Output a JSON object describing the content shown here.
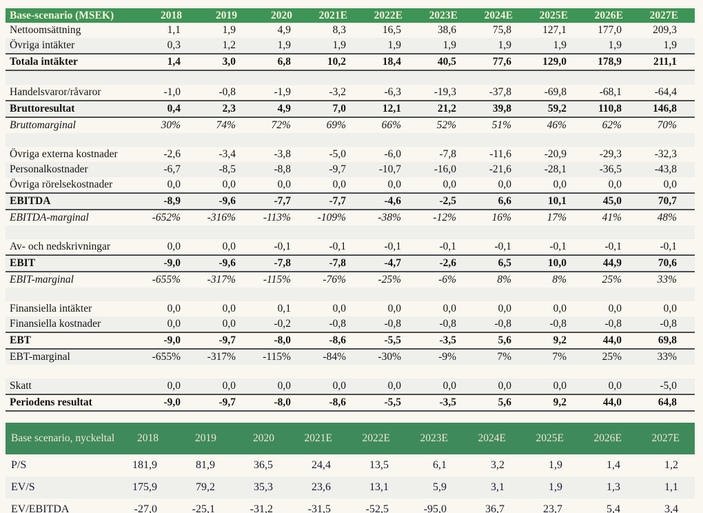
{
  "colors": {
    "page_background": "#f9f7ef",
    "table1_header_green": "#3e9456",
    "table2_header_green": "#3f8a5a",
    "header_text": "#f5f1dc",
    "row_stripe": "#efefec",
    "total_row_border": "#4c4d4f",
    "body_text": "#141414"
  },
  "table1": {
    "header": {
      "label": "Base-scenario (MSEK)",
      "years": [
        "2018",
        "2019",
        "2020",
        "2021E",
        "2022E",
        "2023E",
        "2024E",
        "2025E",
        "2026E",
        "2027E"
      ]
    },
    "rows": [
      {
        "label": "Nettoomsättning",
        "type": "normal",
        "values": [
          "1,1",
          "1,9",
          "4,9",
          "8,3",
          "16,5",
          "38,6",
          "75,8",
          "127,1",
          "177,0",
          "209,3"
        ]
      },
      {
        "label": "Övriga intäkter",
        "type": "normal",
        "values": [
          "0,3",
          "1,2",
          "1,9",
          "1,9",
          "1,9",
          "1,9",
          "1,9",
          "1,9",
          "1,9",
          "1,9"
        ]
      },
      {
        "label": "Totala intäkter",
        "type": "total",
        "values": [
          "1,4",
          "3,0",
          "6,8",
          "10,2",
          "18,4",
          "40,5",
          "77,6",
          "129,0",
          "178,9",
          "211,1"
        ]
      },
      {
        "label": "",
        "type": "blank",
        "values": [
          "",
          "",
          "",
          "",
          "",
          "",
          "",
          "",
          "",
          ""
        ]
      },
      {
        "label": "Handelsvaror/råvaror",
        "type": "normal",
        "values": [
          "-1,0",
          "-0,8",
          "-1,9",
          "-3,2",
          "-6,3",
          "-19,3",
          "-37,8",
          "-69,8",
          "-68,1",
          "-64,4"
        ]
      },
      {
        "label": "Bruttoresultat",
        "type": "total",
        "values": [
          "0,4",
          "2,3",
          "4,9",
          "7,0",
          "12,1",
          "21,2",
          "39,8",
          "59,2",
          "110,8",
          "146,8"
        ]
      },
      {
        "label": "Bruttomarginal",
        "type": "italic",
        "values": [
          "30%",
          "74%",
          "72%",
          "69%",
          "66%",
          "52%",
          "51%",
          "46%",
          "62%",
          "70%"
        ]
      },
      {
        "label": "",
        "type": "blank",
        "values": [
          "",
          "",
          "",
          "",
          "",
          "",
          "",
          "",
          "",
          ""
        ]
      },
      {
        "label": "Övriga externa kostnader",
        "type": "normal",
        "values": [
          "-2,6",
          "-3,4",
          "-3,8",
          "-5,0",
          "-6,0",
          "-7,8",
          "-11,6",
          "-20,9",
          "-29,3",
          "-32,3"
        ]
      },
      {
        "label": "Personalkostnader",
        "type": "normal",
        "values": [
          "-6,7",
          "-8,5",
          "-8,8",
          "-9,7",
          "-10,7",
          "-16,0",
          "-21,6",
          "-28,1",
          "-36,5",
          "-43,8"
        ]
      },
      {
        "label": "Övriga rörelsekostnader",
        "type": "normal",
        "values": [
          "0,0",
          "0,0",
          "0,0",
          "0,0",
          "0,0",
          "0,0",
          "0,0",
          "0,0",
          "0,0",
          "0,0"
        ]
      },
      {
        "label": "EBITDA",
        "type": "total",
        "values": [
          "-8,9",
          "-9,6",
          "-7,7",
          "-7,7",
          "-4,6",
          "-2,5",
          "6,6",
          "10,1",
          "45,0",
          "70,7"
        ]
      },
      {
        "label": "EBITDA-marginal",
        "type": "italic",
        "values": [
          "-652%",
          "-316%",
          "-113%",
          "-109%",
          "-38%",
          "-12%",
          "16%",
          "17%",
          "41%",
          "48%"
        ]
      },
      {
        "label": "",
        "type": "blank",
        "values": [
          "",
          "",
          "",
          "",
          "",
          "",
          "",
          "",
          "",
          ""
        ]
      },
      {
        "label": "Av- och nedskrivningar",
        "type": "normal",
        "values": [
          "0,0",
          "0,0",
          "-0,1",
          "-0,1",
          "-0,1",
          "-0,1",
          "-0,1",
          "-0,1",
          "-0,1",
          "-0,1"
        ]
      },
      {
        "label": "EBIT",
        "type": "total",
        "values": [
          "-9,0",
          "-9,6",
          "-7,8",
          "-7,8",
          "-4,7",
          "-2,6",
          "6,5",
          "10,0",
          "44,9",
          "70,6"
        ]
      },
      {
        "label": "EBIT-marginal",
        "type": "italic",
        "values": [
          "-655%",
          "-317%",
          "-115%",
          "-76%",
          "-25%",
          "-6%",
          "8%",
          "8%",
          "25%",
          "33%"
        ]
      },
      {
        "label": "",
        "type": "blank",
        "values": [
          "",
          "",
          "",
          "",
          "",
          "",
          "",
          "",
          "",
          ""
        ]
      },
      {
        "label": "Finansiella intäkter",
        "type": "normal",
        "values": [
          "0,0",
          "0,0",
          "0,1",
          "0,0",
          "0,0",
          "0,0",
          "0,0",
          "0,0",
          "0,0",
          "0,0"
        ]
      },
      {
        "label": "Finansiella kostnader",
        "type": "normal",
        "values": [
          "0,0",
          "0,0",
          "-0,2",
          "-0,8",
          "-0,8",
          "-0,8",
          "-0,8",
          "-0,8",
          "-0,8",
          "-0,8"
        ]
      },
      {
        "label": "EBT",
        "type": "total",
        "values": [
          "-9,0",
          "-9,7",
          "-8,0",
          "-8,6",
          "-5,5",
          "-3,5",
          "5,6",
          "9,2",
          "44,0",
          "69,8"
        ]
      },
      {
        "label": "EBT-marginal",
        "type": "normal",
        "values": [
          "-655%",
          "-317%",
          "-115%",
          "-84%",
          "-30%",
          "-9%",
          "7%",
          "7%",
          "25%",
          "33%"
        ]
      },
      {
        "label": "",
        "type": "blank",
        "values": [
          "",
          "",
          "",
          "",
          "",
          "",
          "",
          "",
          "",
          ""
        ]
      },
      {
        "label": "Skatt",
        "type": "normal",
        "values": [
          "0,0",
          "0,0",
          "0,0",
          "0,0",
          "0,0",
          "0,0",
          "0,0",
          "0,0",
          "0,0",
          "-5,0"
        ]
      },
      {
        "label": "Periodens resultat",
        "type": "total",
        "values": [
          "-9,0",
          "-9,7",
          "-8,0",
          "-8,6",
          "-5,5",
          "-3,5",
          "5,6",
          "9,2",
          "44,0",
          "64,8"
        ]
      }
    ]
  },
  "table2": {
    "header": {
      "label": "Base scenario, nyckeltal",
      "years": [
        "2018",
        "2019",
        "2020",
        "2021E",
        "2022E",
        "2023E",
        "2024E",
        "2025E",
        "2026E",
        "2027E"
      ]
    },
    "rows": [
      {
        "label": "P/S",
        "type": "normal",
        "values": [
          "181,9",
          "81,9",
          "36,5",
          "24,4",
          "13,5",
          "6,1",
          "3,2",
          "1,9",
          "1,4",
          "1,2"
        ]
      },
      {
        "label": "EV/S",
        "type": "normal",
        "values": [
          "175,9",
          "79,2",
          "35,3",
          "23,6",
          "13,1",
          "5,9",
          "3,1",
          "1,9",
          "1,3",
          "1,1"
        ]
      },
      {
        "label": "EV/EBITDA",
        "type": "normal",
        "values": [
          "-27,0",
          "-25,1",
          "-31,2",
          "-31,5",
          "-52,5",
          "-95,0",
          "36,7",
          "23,7",
          "5,4",
          "3,4"
        ]
      }
    ]
  }
}
